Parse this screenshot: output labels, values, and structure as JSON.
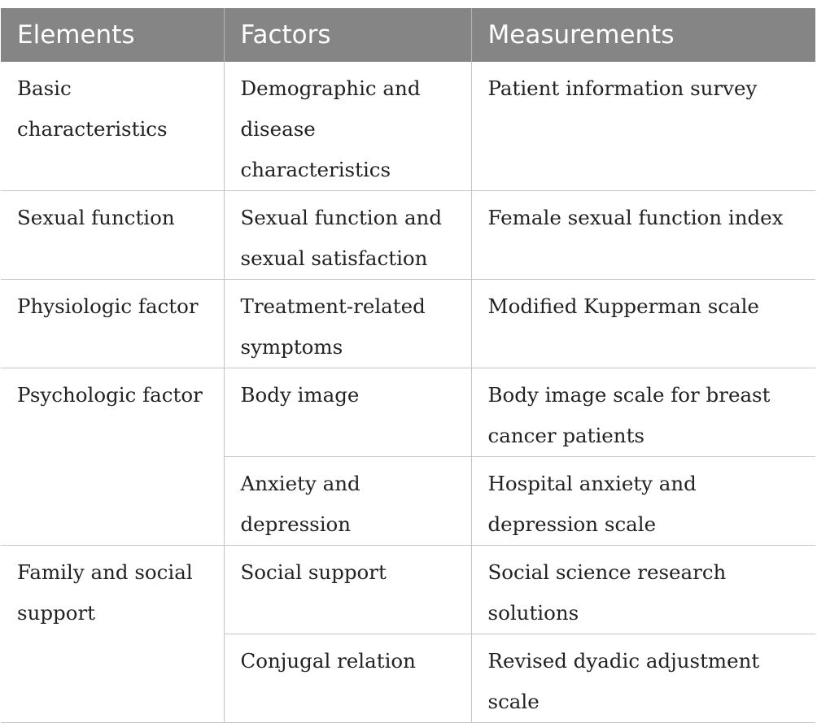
{
  "table": {
    "headers": [
      "Elements",
      "Factors",
      "Measurements"
    ],
    "rows": [
      {
        "element": "Basic characteristics",
        "factor": "Demographic and disease characteristics",
        "measurement": "Patient information survey"
      },
      {
        "element": "Sexual function",
        "factor": "Sexual function and sexual satisfaction",
        "measurement": "Female sexual function index"
      },
      {
        "element": "Physiologic factor",
        "factor": "Treatment-related symptoms",
        "measurement": "Modified Kupperman scale"
      },
      {
        "element": "Psychologic factor",
        "factor": "Body image",
        "measurement": "Body image scale for breast cancer patients"
      },
      {
        "element": "",
        "factor": "Anxiety and depression",
        "measurement": "Hospital anxiety and depression scale"
      },
      {
        "element": "Family and social support",
        "factor": "Social support",
        "measurement": "Social science research solutions"
      },
      {
        "element": "",
        "factor": "Conjugal relation",
        "measurement": "Revised dyadic adjustment scale"
      }
    ]
  }
}
